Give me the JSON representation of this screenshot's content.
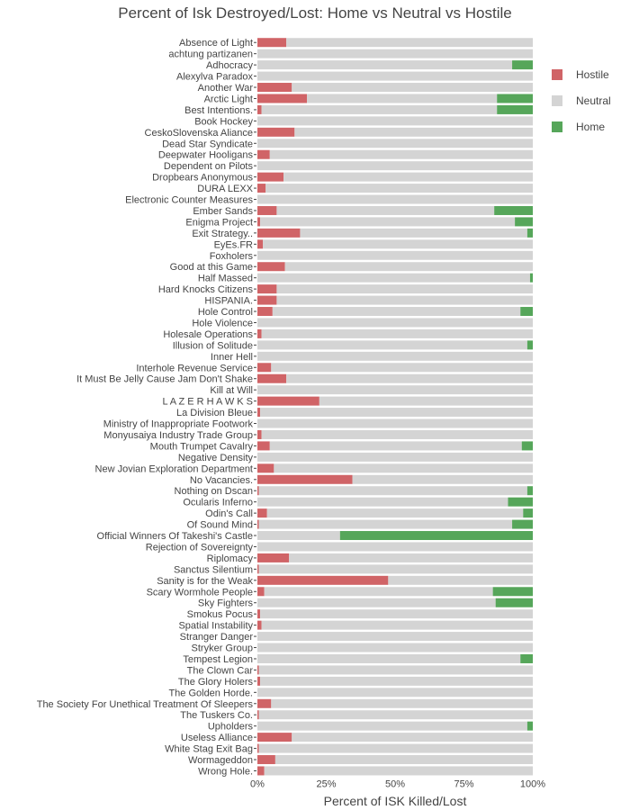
{
  "chart_data": {
    "type": "bar",
    "orientation": "horizontal",
    "stacked": true,
    "title": "Percent of Isk Destroyed/Lost: Home vs Neutral vs Hostile",
    "xlabel": "Percent of ISK Killed/Lost",
    "ylabel": "",
    "xlim": [
      0,
      1
    ],
    "x_ticks": [
      {
        "value": 0,
        "label": "0%"
      },
      {
        "value": 0.25,
        "label": "25%"
      },
      {
        "value": 0.5,
        "label": "50%"
      },
      {
        "value": 0.75,
        "label": "75%"
      },
      {
        "value": 1,
        "label": "100%"
      }
    ],
    "legend": {
      "position": "right",
      "entries": [
        {
          "name": "Hostile",
          "color": "#d06467"
        },
        {
          "name": "Neutral",
          "color": "#d4d4d4"
        },
        {
          "name": "Home",
          "color": "#56a65a"
        }
      ]
    },
    "categories": [
      "Absence of Light",
      "achtung partizanen",
      "Adhocracy",
      "Alexylva Paradox",
      "Another War",
      "Arctic Light",
      "Best Intentions.",
      "Book Hockey",
      "CeskoSlovenska Aliance",
      "Dead Star Syndicate",
      "Deepwater Hooligans",
      "Dependent on Pilots",
      "Dropbears Anonymous",
      "DURA LEXX",
      "Electronic Counter Measures",
      "Ember Sands",
      "Enigma Project",
      "Exit Strategy..",
      "EyEs.FR",
      "Foxholers",
      "Good at this Game",
      "Half Massed",
      "Hard Knocks Citizens",
      "HISPANIA.",
      "Hole Control",
      "Hole Violence",
      "Holesale Operations",
      "Illusion of Solitude",
      "Inner Hell",
      "Interhole Revenue Service",
      "It Must Be Jelly Cause Jam Don't Shake",
      "Kill at Will",
      "L A Z E R H A W K S",
      "La Division Bleue",
      "Ministry of Inappropriate Footwork",
      "Monyusaiya Industry Trade Group",
      "Mouth Trumpet Cavalry",
      "Negative Density",
      "New Jovian Exploration Department",
      "No Vacancies.",
      "Nothing on Dscan",
      "Ocularis Inferno",
      "Odin's Call",
      "Of Sound Mind",
      "Official Winners Of Takeshi's Castle",
      "Rejection of Sovereignty",
      "Riplomacy",
      "Sanctus Silentium",
      "Sanity is for the Weak",
      "Scary Wormhole People",
      "Sky Fighters",
      "Smokus Pocus",
      "Spatial Instability",
      "Stranger Danger",
      "Stryker Group",
      "Tempest Legion",
      "The Clown Car",
      "The Glory Holers",
      "The Golden Horde.",
      "The Society For Unethical Treatment Of Sleepers",
      "The Tuskers Co.",
      "Upholders",
      "Useless Alliance",
      "White Stag Exit Bag",
      "Wormageddon",
      "Wrong Hole."
    ],
    "series": [
      {
        "name": "Hostile",
        "color": "#d06467",
        "values": [
          0.105,
          0.0,
          0.0,
          0.0,
          0.125,
          0.18,
          0.015,
          0.0,
          0.135,
          0.0,
          0.045,
          0.0,
          0.095,
          0.03,
          0.0,
          0.07,
          0.01,
          0.155,
          0.02,
          0.0,
          0.1,
          0.0,
          0.07,
          0.07,
          0.055,
          0.0,
          0.015,
          0.0,
          0.0,
          0.05,
          0.105,
          0.0,
          0.225,
          0.01,
          0.0,
          0.015,
          0.045,
          0.0,
          0.06,
          0.345,
          0.005,
          0.0,
          0.035,
          0.005,
          0.0,
          0.0,
          0.115,
          0.005,
          0.475,
          0.025,
          0.0,
          0.01,
          0.015,
          0.0,
          0.0,
          0.0,
          0.005,
          0.01,
          0.0,
          0.05,
          0.005,
          0.0,
          0.125,
          0.005,
          0.065,
          0.025
        ]
      },
      {
        "name": "Neutral",
        "color": "#d4d4d4",
        "values": [
          0.895,
          1.0,
          0.925,
          1.0,
          0.875,
          0.69,
          0.855,
          1.0,
          0.865,
          1.0,
          0.955,
          1.0,
          0.905,
          0.97,
          1.0,
          0.79,
          0.925,
          0.825,
          0.98,
          1.0,
          0.9,
          0.99,
          0.93,
          0.93,
          0.9,
          1.0,
          0.985,
          0.98,
          1.0,
          0.95,
          0.895,
          1.0,
          0.775,
          0.99,
          1.0,
          0.985,
          0.915,
          1.0,
          0.94,
          0.655,
          0.975,
          0.91,
          0.93,
          0.92,
          0.3,
          1.0,
          0.885,
          0.995,
          0.525,
          0.83,
          0.865,
          0.99,
          0.985,
          1.0,
          1.0,
          0.955,
          0.995,
          0.99,
          1.0,
          0.95,
          0.995,
          0.98,
          0.875,
          0.995,
          0.935,
          0.975
        ]
      },
      {
        "name": "Home",
        "color": "#56a65a",
        "values": [
          0.0,
          0.0,
          0.075,
          0.0,
          0.0,
          0.13,
          0.13,
          0.0,
          0.0,
          0.0,
          0.0,
          0.0,
          0.0,
          0.0,
          0.0,
          0.14,
          0.065,
          0.02,
          0.0,
          0.0,
          0.0,
          0.01,
          0.0,
          0.0,
          0.045,
          0.0,
          0.0,
          0.02,
          0.0,
          0.0,
          0.0,
          0.0,
          0.0,
          0.0,
          0.0,
          0.0,
          0.04,
          0.0,
          0.0,
          0.0,
          0.02,
          0.09,
          0.035,
          0.075,
          0.7,
          0.0,
          0.0,
          0.0,
          0.0,
          0.145,
          0.135,
          0.0,
          0.0,
          0.0,
          0.0,
          0.045,
          0.0,
          0.0,
          0.0,
          0.0,
          0.0,
          0.02,
          0.0,
          0.0,
          0.0,
          0.0
        ]
      }
    ]
  }
}
